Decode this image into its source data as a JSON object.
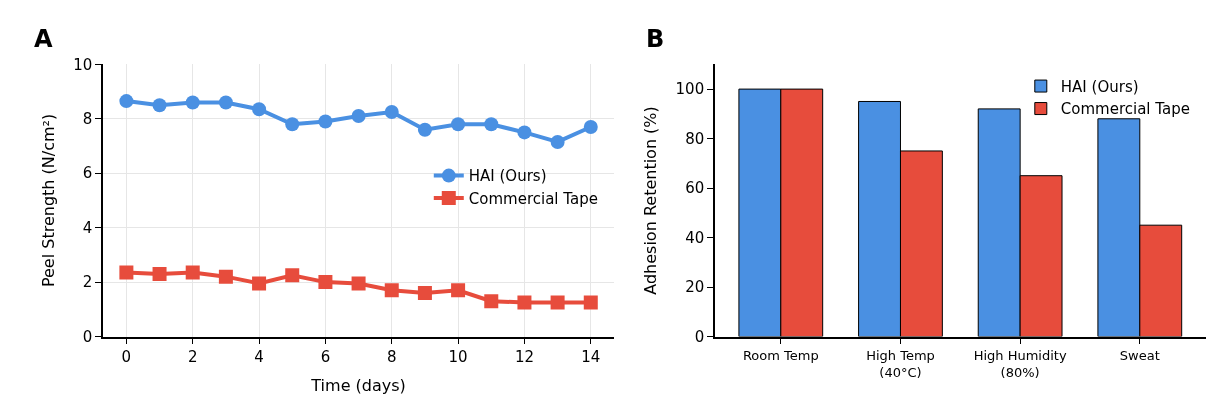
{
  "chart_data": [
    {
      "type": "line",
      "title": "A",
      "xlabel": "Time (days)",
      "ylabel": "Peel Strength (N/cm²)",
      "x": [
        0,
        1,
        2,
        3,
        4,
        5,
        6,
        7,
        8,
        9,
        10,
        11,
        12,
        13,
        14
      ],
      "series": [
        {
          "name": "HAI (Ours)",
          "color": "#4a90e2",
          "marker": "circle",
          "values": [
            8.65,
            8.5,
            8.6,
            8.6,
            8.35,
            7.8,
            7.9,
            8.1,
            8.25,
            7.6,
            7.8,
            7.8,
            7.5,
            7.15,
            7.7
          ]
        },
        {
          "name": "Commercial Tape",
          "color": "#e74c3c",
          "marker": "square",
          "values": [
            2.35,
            2.3,
            2.35,
            2.2,
            1.95,
            2.25,
            2.0,
            1.95,
            1.7,
            1.6,
            1.7,
            1.3,
            1.25,
            1.25,
            1.25
          ]
        }
      ],
      "xlim": [
        -0.7,
        14.7
      ],
      "xticks": [
        0,
        2,
        4,
        6,
        8,
        10,
        12,
        14
      ],
      "ylim": [
        0,
        10
      ],
      "yticks": [
        0,
        2,
        4,
        6,
        8,
        10
      ],
      "grid": true,
      "legend": "right",
      "line_style": "solid"
    },
    {
      "type": "bar",
      "title": "B",
      "ylabel": "Adhesion Retention (%)",
      "categories": [
        "Room Temp",
        "High Temp\n(40°C)",
        "High Humidity\n(80%)",
        "Sweat"
      ],
      "series": [
        {
          "name": "HAI (Ours)",
          "color": "#4a90e2",
          "values": [
            100,
            95,
            92,
            88
          ]
        },
        {
          "name": "Commercial Tape",
          "color": "#e74c3c",
          "values": [
            100,
            75,
            65,
            45
          ]
        }
      ],
      "ylim": [
        0,
        110
      ],
      "yticks": [
        0,
        20,
        40,
        60,
        80,
        100
      ],
      "grid": false,
      "legend": "top right"
    }
  ]
}
